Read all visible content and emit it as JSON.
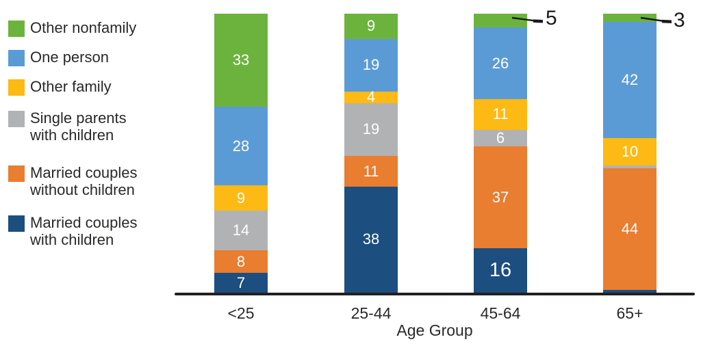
{
  "chart_data": {
    "type": "bar",
    "subtype": "stacked-100-percent",
    "title": "",
    "xlabel": "Age Group",
    "ylabel": "",
    "grid": false,
    "legend_position": "left",
    "categories": [
      "<25",
      "25-44",
      "45-64",
      "65+"
    ],
    "series": [
      {
        "name": "Married couples with children",
        "color": "#1C4E80",
        "values": [
          7,
          38,
          16,
          1
        ]
      },
      {
        "name": "Married couples without children",
        "color": "#E97D30",
        "values": [
          8,
          11,
          37,
          44
        ]
      },
      {
        "name": "Single parents with children",
        "color": "#B1B2B4",
        "values": [
          14,
          19,
          6,
          1
        ]
      },
      {
        "name": "Other family",
        "color": "#FDB914",
        "values": [
          9,
          4,
          11,
          10
        ]
      },
      {
        "name": "One person",
        "color": "#5B9BD5",
        "values": [
          28,
          19,
          26,
          42
        ]
      },
      {
        "name": "Other nonfamily",
        "color": "#6CB33E",
        "values": [
          33,
          9,
          5,
          3
        ]
      }
    ],
    "stack_order_bottom_to_top": [
      "Married couples with children",
      "Married couples without children",
      "Single parents with children",
      "Other family",
      "One person",
      "Other nonfamily"
    ],
    "value_labels": {
      "shown_inside_segments": true,
      "hidden": [
        {
          "category": "65+",
          "series": "Single parents with children"
        },
        {
          "category": "65+",
          "series": "Married couples with children"
        }
      ],
      "callouts": [
        {
          "category": "45-64",
          "series": "Other nonfamily",
          "text": "5"
        },
        {
          "category": "65+",
          "series": "Other nonfamily",
          "text": "3"
        }
      ],
      "emphasized": [
        {
          "category": "45-64",
          "series": "Married couples with children",
          "text": "16"
        }
      ]
    },
    "legend": {
      "items": [
        {
          "color": "#6CB33E",
          "lines": [
            "Other nonfamily"
          ]
        },
        {
          "color": "#5B9BD5",
          "lines": [
            "One person"
          ]
        },
        {
          "color": "#FDB914",
          "lines": [
            "Other family"
          ]
        },
        {
          "color": "#B1B2B4",
          "lines": [
            "Single parents",
            "with children"
          ]
        },
        {
          "color": "#E97D30",
          "lines": [
            "Married couples",
            "without children"
          ]
        },
        {
          "color": "#1C4E80",
          "lines": [
            "Married couples",
            "with children"
          ]
        }
      ]
    }
  }
}
